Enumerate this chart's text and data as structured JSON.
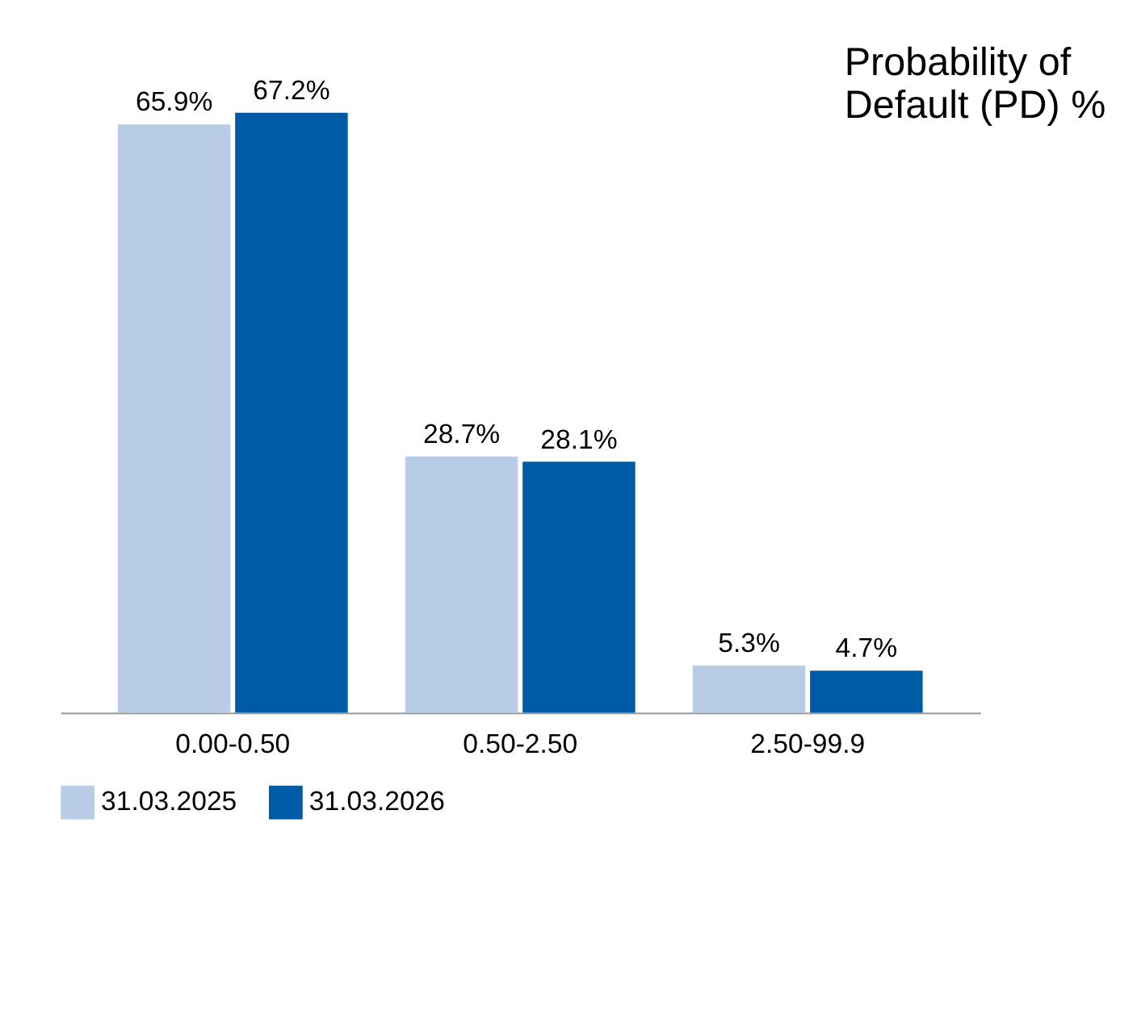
{
  "chart_data": {
    "type": "bar",
    "title": "Probability of\nDefault (PD) %",
    "categories": [
      "0.00-0.50",
      "0.50-2.50",
      "2.50-99.9"
    ],
    "series": [
      {
        "name": "31.03.2025",
        "color": "#b8cde5",
        "values": [
          65.9,
          28.7,
          5.3
        ],
        "value_labels": [
          "65.9%",
          "28.7%",
          "5.3%"
        ]
      },
      {
        "name": "31.03.2026",
        "color": "#005ba6",
        "values": [
          67.2,
          28.1,
          4.7
        ],
        "value_labels": [
          "67.2%",
          "28.1%",
          "4.7%"
        ]
      }
    ],
    "legend": "bottom",
    "grid": false
  }
}
